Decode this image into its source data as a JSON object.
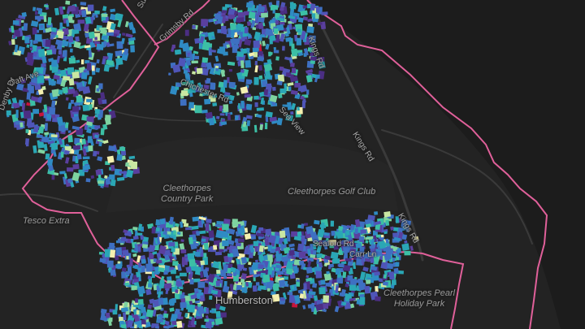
{
  "map": {
    "theme": "dark",
    "colors": {
      "land": "#232323",
      "water": "#1c1c1c",
      "park": "#2b2b2b",
      "road": "#3a3a3a",
      "boundary": "#e0609a",
      "label": "#9a9a9a"
    },
    "building_palette": [
      "#4b2e83",
      "#5a3f9e",
      "#4f55b8",
      "#3e70c2",
      "#2f8bc4",
      "#2aa7b5",
      "#3cbfa5",
      "#7ed3a0",
      "#c9e7a2",
      "#f5f0b0",
      "#c8143c"
    ],
    "area_labels": {
      "country_park": "Cleethorpes\nCountry Park",
      "golf_club": "Cleethorpes Golf Club",
      "tesco": "Tesco Extra",
      "holiday_park": "Cleethorpes Pearl\nHoliday Park"
    },
    "place_labels": {
      "humberston": "Humberston"
    },
    "road_labels": {
      "kings_rd_1": "Kings Rd",
      "kings_rd_2": "Kings Rd",
      "kings_rd_3": "Kings Rd",
      "seaford_rd": "Seaford Rd",
      "chichester_rd": "Chichester Rd",
      "grimsby_rd": "Grimsby Rd",
      "sea_view": "Sea View",
      "carr_ln": "Carr Ln",
      "daft_ave": "Daft Ave",
      "denby_dr": "Denby Dr",
      "suggitts": "Suggitts"
    }
  }
}
